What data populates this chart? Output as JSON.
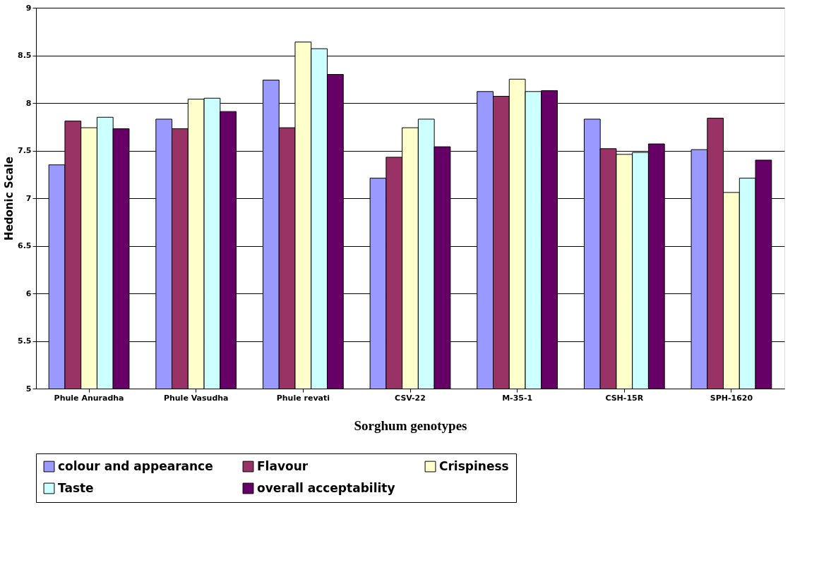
{
  "chart_data": {
    "type": "bar",
    "xlabel": "Sorghum genotypes",
    "ylabel": "Hedonic Scale",
    "categories": [
      "Phule Anuradha",
      "Phule Vasudha",
      "Phule revati",
      "CSV-22",
      "M-35-1",
      "CSH-15R",
      "SPH-1620"
    ],
    "series": [
      {
        "name": "colour and appearance",
        "color": "#9999ff",
        "values": [
          7.35,
          7.83,
          8.24,
          7.21,
          8.12,
          7.83,
          7.51
        ]
      },
      {
        "name": "Flavour",
        "color": "#993366",
        "values": [
          7.81,
          7.73,
          7.74,
          7.43,
          8.07,
          7.52,
          7.84
        ]
      },
      {
        "name": "Crispiness",
        "color": "#ffffcc",
        "values": [
          7.74,
          8.04,
          8.64,
          7.74,
          8.25,
          7.46,
          7.06
        ]
      },
      {
        "name": "Taste",
        "color": "#ccffff",
        "values": [
          7.85,
          8.05,
          8.57,
          7.83,
          8.12,
          7.48,
          7.21
        ]
      },
      {
        "name": "overall acceptability",
        "color": "#660066",
        "values": [
          7.73,
          7.91,
          8.3,
          7.54,
          8.13,
          7.57,
          7.4
        ]
      }
    ],
    "ylim": [
      5,
      9
    ],
    "yticks": [
      5,
      5.5,
      6,
      6.5,
      7,
      7.5,
      8,
      8.5,
      9
    ],
    "grid": "y",
    "legend": "bottom"
  }
}
